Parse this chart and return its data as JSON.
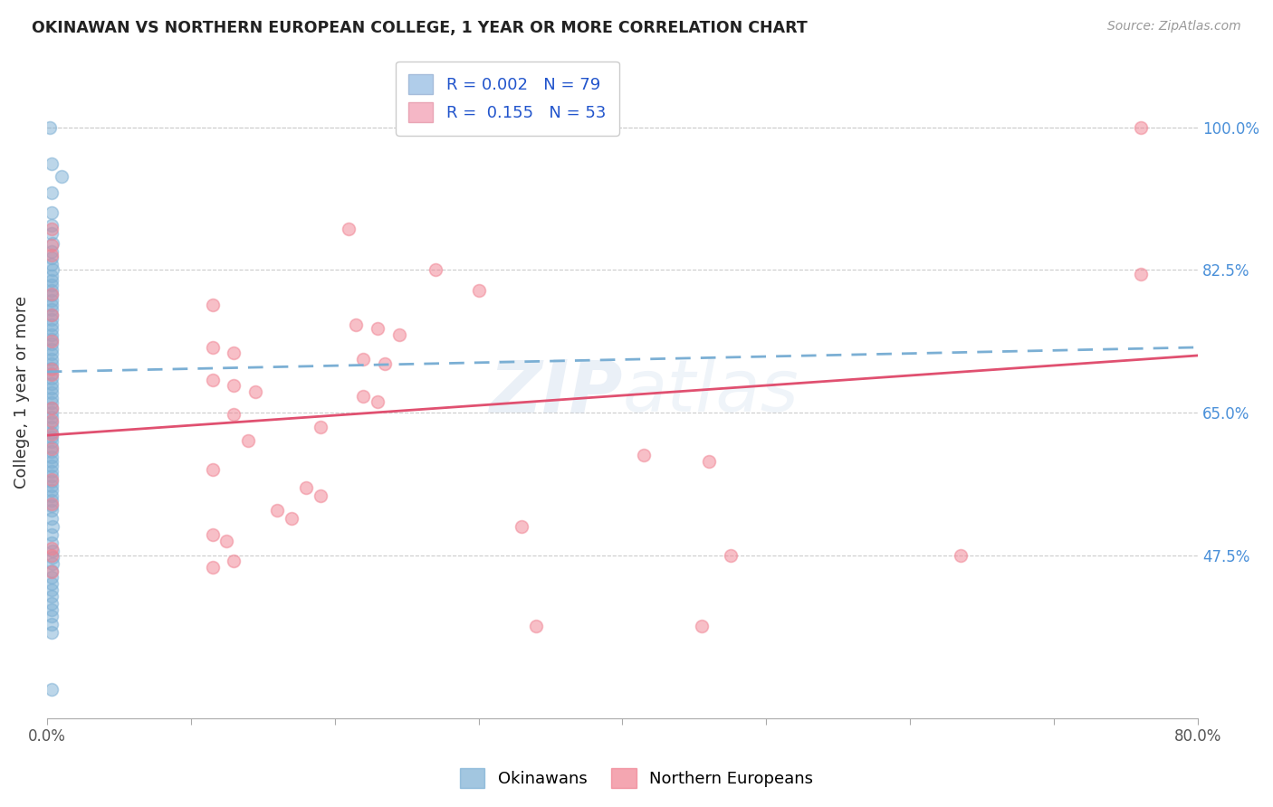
{
  "title": "OKINAWAN VS NORTHERN EUROPEAN COLLEGE, 1 YEAR OR MORE CORRELATION CHART",
  "source": "Source: ZipAtlas.com",
  "ylabel": "College, 1 year or more",
  "xlim": [
    0.0,
    0.8
  ],
  "ylim": [
    0.275,
    1.075
  ],
  "xticks": [
    0.0,
    0.1,
    0.2,
    0.3,
    0.4,
    0.5,
    0.6,
    0.7,
    0.8
  ],
  "xticklabels": [
    "0.0%",
    "",
    "",
    "",
    "",
    "",
    "",
    "",
    "80.0%"
  ],
  "ytick_positions": [
    0.475,
    0.65,
    0.825,
    1.0
  ],
  "ytick_labels": [
    "47.5%",
    "65.0%",
    "82.5%",
    "100.0%"
  ],
  "okinawan_color": "#7bafd4",
  "northern_color": "#f08090",
  "trend_okinawan_color": "#7bafd4",
  "trend_northern_color": "#e05070",
  "watermark": "ZIPatlas",
  "blue_scatter": [
    [
      0.002,
      1.0
    ],
    [
      0.003,
      0.955
    ],
    [
      0.01,
      0.94
    ],
    [
      0.003,
      0.92
    ],
    [
      0.003,
      0.895
    ],
    [
      0.003,
      0.88
    ],
    [
      0.003,
      0.87
    ],
    [
      0.004,
      0.858
    ],
    [
      0.003,
      0.848
    ],
    [
      0.003,
      0.84
    ],
    [
      0.003,
      0.832
    ],
    [
      0.004,
      0.825
    ],
    [
      0.003,
      0.818
    ],
    [
      0.003,
      0.812
    ],
    [
      0.003,
      0.806
    ],
    [
      0.003,
      0.8
    ],
    [
      0.003,
      0.794
    ],
    [
      0.003,
      0.788
    ],
    [
      0.003,
      0.782
    ],
    [
      0.003,
      0.776
    ],
    [
      0.003,
      0.77
    ],
    [
      0.003,
      0.764
    ],
    [
      0.003,
      0.758
    ],
    [
      0.003,
      0.752
    ],
    [
      0.003,
      0.746
    ],
    [
      0.003,
      0.74
    ],
    [
      0.003,
      0.734
    ],
    [
      0.003,
      0.728
    ],
    [
      0.003,
      0.722
    ],
    [
      0.003,
      0.716
    ],
    [
      0.003,
      0.71
    ],
    [
      0.003,
      0.704
    ],
    [
      0.003,
      0.698
    ],
    [
      0.003,
      0.692
    ],
    [
      0.003,
      0.686
    ],
    [
      0.003,
      0.68
    ],
    [
      0.003,
      0.674
    ],
    [
      0.003,
      0.668
    ],
    [
      0.003,
      0.662
    ],
    [
      0.003,
      0.656
    ],
    [
      0.003,
      0.65
    ],
    [
      0.003,
      0.644
    ],
    [
      0.003,
      0.638
    ],
    [
      0.003,
      0.632
    ],
    [
      0.003,
      0.626
    ],
    [
      0.003,
      0.62
    ],
    [
      0.003,
      0.614
    ],
    [
      0.003,
      0.608
    ],
    [
      0.003,
      0.602
    ],
    [
      0.003,
      0.596
    ],
    [
      0.003,
      0.59
    ],
    [
      0.003,
      0.584
    ],
    [
      0.003,
      0.578
    ],
    [
      0.003,
      0.572
    ],
    [
      0.003,
      0.566
    ],
    [
      0.003,
      0.56
    ],
    [
      0.003,
      0.554
    ],
    [
      0.003,
      0.548
    ],
    [
      0.003,
      0.542
    ],
    [
      0.003,
      0.536
    ],
    [
      0.003,
      0.53
    ],
    [
      0.003,
      0.52
    ],
    [
      0.004,
      0.51
    ],
    [
      0.003,
      0.5
    ],
    [
      0.003,
      0.49
    ],
    [
      0.004,
      0.48
    ],
    [
      0.004,
      0.472
    ],
    [
      0.004,
      0.464
    ],
    [
      0.003,
      0.456
    ],
    [
      0.003,
      0.448
    ],
    [
      0.003,
      0.44
    ],
    [
      0.003,
      0.432
    ],
    [
      0.003,
      0.424
    ],
    [
      0.003,
      0.416
    ],
    [
      0.003,
      0.408
    ],
    [
      0.003,
      0.4
    ],
    [
      0.003,
      0.39
    ],
    [
      0.003,
      0.38
    ],
    [
      0.003,
      0.31
    ]
  ],
  "pink_scatter": [
    [
      0.76,
      1.0
    ],
    [
      0.003,
      0.875
    ],
    [
      0.21,
      0.875
    ],
    [
      0.003,
      0.855
    ],
    [
      0.003,
      0.843
    ],
    [
      0.27,
      0.825
    ],
    [
      0.76,
      0.82
    ],
    [
      0.3,
      0.8
    ],
    [
      0.003,
      0.795
    ],
    [
      0.115,
      0.782
    ],
    [
      0.003,
      0.77
    ],
    [
      0.215,
      0.758
    ],
    [
      0.23,
      0.753
    ],
    [
      0.245,
      0.745
    ],
    [
      0.003,
      0.738
    ],
    [
      0.115,
      0.73
    ],
    [
      0.13,
      0.723
    ],
    [
      0.22,
      0.716
    ],
    [
      0.235,
      0.71
    ],
    [
      0.003,
      0.703
    ],
    [
      0.003,
      0.697
    ],
    [
      0.115,
      0.69
    ],
    [
      0.13,
      0.683
    ],
    [
      0.145,
      0.676
    ],
    [
      0.22,
      0.67
    ],
    [
      0.23,
      0.663
    ],
    [
      0.003,
      0.656
    ],
    [
      0.13,
      0.648
    ],
    [
      0.003,
      0.64
    ],
    [
      0.19,
      0.632
    ],
    [
      0.003,
      0.623
    ],
    [
      0.14,
      0.615
    ],
    [
      0.003,
      0.605
    ],
    [
      0.415,
      0.598
    ],
    [
      0.46,
      0.59
    ],
    [
      0.115,
      0.58
    ],
    [
      0.003,
      0.568
    ],
    [
      0.18,
      0.558
    ],
    [
      0.19,
      0.548
    ],
    [
      0.003,
      0.538
    ],
    [
      0.16,
      0.53
    ],
    [
      0.17,
      0.52
    ],
    [
      0.33,
      0.51
    ],
    [
      0.115,
      0.5
    ],
    [
      0.125,
      0.492
    ],
    [
      0.003,
      0.483
    ],
    [
      0.003,
      0.475
    ],
    [
      0.475,
      0.475
    ],
    [
      0.635,
      0.475
    ],
    [
      0.13,
      0.468
    ],
    [
      0.115,
      0.46
    ],
    [
      0.003,
      0.455
    ],
    [
      0.34,
      0.388
    ],
    [
      0.455,
      0.388
    ]
  ]
}
